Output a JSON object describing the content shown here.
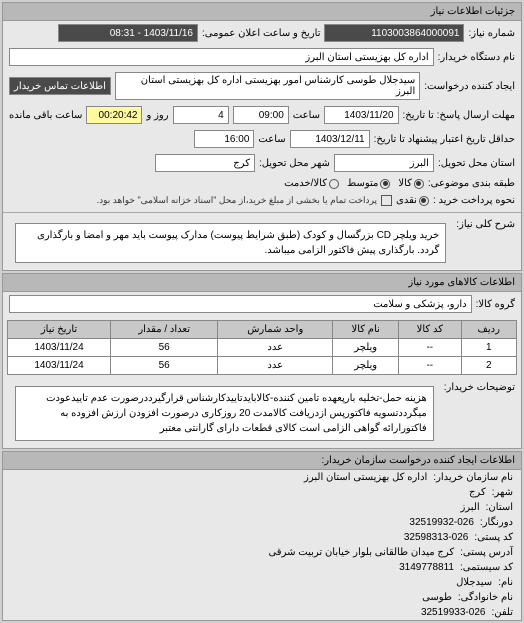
{
  "panel1": {
    "title": "جزئیات اطلاعات نیاز",
    "req_number_label": "شماره نیاز:",
    "req_number": "1103003864000091",
    "public_date_label": "تاریخ و ساعت اعلان عمومی:",
    "public_date": "1403/11/16 - 08:31",
    "buyer_label": "نام دستگاه خریدار:",
    "buyer": "اداره کل بهزیستی استان البرز",
    "creator_label": "ایجاد کننده درخواست:",
    "creator": "سیدجلال طوسی کارشناس امور بهزیستی اداره کل بهزیستی استان البرز",
    "contact_btn": "اطلاعات تماس خریدار",
    "deadline_label": "مهلت ارسال پاسخ: تا تاریخ:",
    "deadline_date": "1403/11/20",
    "deadline_time_label": "ساعت",
    "deadline_time": "09:00",
    "days_label": "روز و",
    "days": "4",
    "remain_time": "00:20:42",
    "remain_label": "ساعت باقی مانده",
    "validity_label": "حداقل تاریخ اعتبار پیشنهاد تا تاریخ:",
    "validity_date": "1403/12/11",
    "validity_time_label": "ساعت",
    "validity_time": "16:00",
    "delivery_state_label": "استان محل تحویل:",
    "delivery_state": "البرز",
    "delivery_city_label": "شهر محل تحویل:",
    "delivery_city": "کرج",
    "category_label": "طبقه بندی موضوعی:",
    "cat_kala": "کالا",
    "cat_medium": "متوسط",
    "cat_exchange": "کالا/خدمت",
    "payment_label": "نحوه پرداخت خرید :",
    "pay_cash": "نقدی",
    "pay_partial_note": "پرداخت تمام یا بخشی از مبلغ خرید،از محل \"اسناد خزانه اسلامی\" خواهد بود.",
    "desc_label": "شرح کلی نیاز:",
    "desc": "خرید ویلچر CD بزرگسال و کودک (طبق شرایط پیوست) مدارک پیوست باید مهر و امضا و بارگذاری گردد. بارگذاری پیش فاکتور الزامی میباشد."
  },
  "panel2": {
    "title": "اطلاعات کالاهای مورد نیاز",
    "group_label": "گروه کالا:",
    "group": "دارو، پزشکی و سلامت",
    "columns": [
      "ردیف",
      "کد کالا",
      "نام کالا",
      "واحد شمارش",
      "تعداد / مقدار",
      "تاریخ نیاز"
    ],
    "rows": [
      [
        "1",
        "--",
        "ویلچر",
        "عدد",
        "56",
        "1403/11/24"
      ],
      [
        "2",
        "--",
        "ویلچر",
        "عدد",
        "56",
        "1403/11/24"
      ]
    ],
    "notes_label": "توضیحات خریدار:",
    "notes": "هزینه حمل-تخلیه بارپعهده تامین کننده-کالابایدتاییدکارشناس قرارگیرددرصورت عدم تاییدعودت میگرددتسویه فاکتورپس ازدریافت کالامدت 20 روزکاری درصورت افزودن ارزش افزوده به فاکتورارائه گواهی الزامی است کالای قطعات دارای گارانتی معتبر"
  },
  "panel3": {
    "title": "اطلاعات ایجاد کننده درخواست سازمان خریدار:",
    "org_label": "نام سازمان خریدار:",
    "org": "اداره کل بهزیستی استان البرز",
    "city_label": "شهر:",
    "city": "کرج",
    "state_label": "استان:",
    "state": "البرز",
    "fax_label": "دورنگار:",
    "fax": "32519932-026",
    "postal_label": "کد پستی:",
    "postal": "32598313-026",
    "address_label": "آدرس پستی:",
    "address": "کرج میدان طالقانی بلوار خیابان تربیت شرقی",
    "id_label": "کد سیستمی:",
    "id": "3149778811",
    "firstname_label": "نام:",
    "firstname": "سیدجلال",
    "lastname_label": "نام خانوادگی:",
    "lastname": "طوسی",
    "phone_label": "تلفن:",
    "phone": "32519933-026"
  }
}
